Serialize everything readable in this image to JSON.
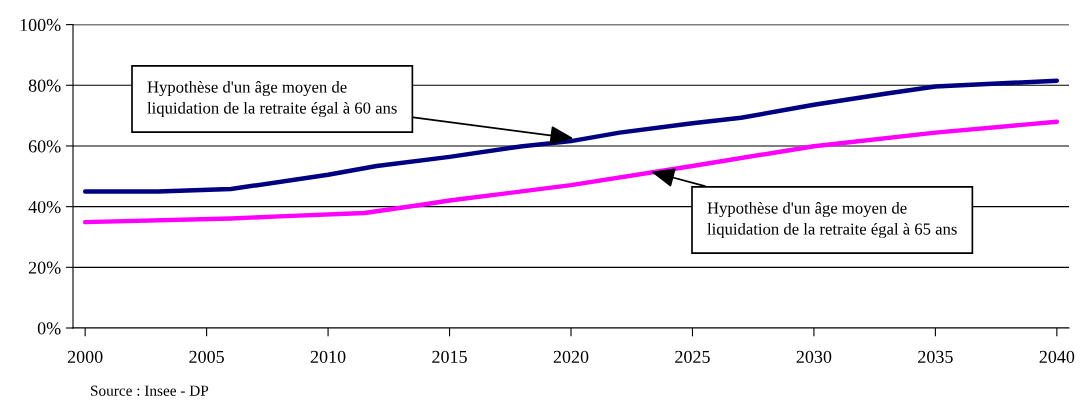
{
  "chart_data": {
    "type": "line",
    "series": [
      {
        "color": "#000080",
        "x": [
          2000,
          2003,
          2006,
          2010,
          2012,
          2015,
          2018,
          2020,
          2022,
          2025,
          2027,
          2030,
          2033,
          2035,
          2040
        ],
        "values": [
          45,
          45,
          45.8,
          50.5,
          53.4,
          56.4,
          59.9,
          61.6,
          64.4,
          67.5,
          69.3,
          73.6,
          77.3,
          79.6,
          81.5
        ]
      },
      {
        "color": "#ff00ff",
        "x": [
          2000,
          2006,
          2008,
          2011.5,
          2014,
          2015,
          2020,
          2025,
          2030,
          2035,
          2040
        ],
        "values": [
          34.9,
          36.1,
          36.8,
          37.9,
          40.8,
          42,
          47.1,
          53.4,
          59.9,
          64.4,
          68
        ]
      }
    ],
    "xlim": [
      1999.5,
      2040.5
    ],
    "xticks": [
      {
        "value": 2000,
        "label": "2000"
      },
      {
        "value": 2005,
        "label": "2005"
      },
      {
        "value": 2010,
        "label": "2010"
      },
      {
        "value": 2015,
        "label": "2015"
      },
      {
        "value": 2020,
        "label": "2020"
      },
      {
        "value": 2025,
        "label": "2025"
      },
      {
        "value": 2030,
        "label": "2030"
      },
      {
        "value": 2035,
        "label": "2035"
      },
      {
        "value": 2040,
        "label": "2040"
      }
    ],
    "ylim": [
      0,
      100
    ],
    "yticks": [
      {
        "value": 0,
        "label": "0%"
      },
      {
        "value": 20,
        "label": "20%"
      },
      {
        "value": 40,
        "label": "40%"
      },
      {
        "value": 60,
        "label": "60%"
      },
      {
        "value": 80,
        "label": "80%"
      },
      {
        "value": 100,
        "label": "100%"
      }
    ],
    "grid": "y",
    "annotations": [
      {
        "text": "Hypothèse d'un âge moyen de\nliquidation de la retraite égal à 60 ans",
        "x": 2020.1,
        "y": 62.5
      },
      {
        "text": "Hypothèse d'un âge moyen de\nliquidation de la retraite égal à 65 ans",
        "x": 2023.3,
        "y": 51.5
      },
      "Source : Insee - DP"
    ]
  }
}
